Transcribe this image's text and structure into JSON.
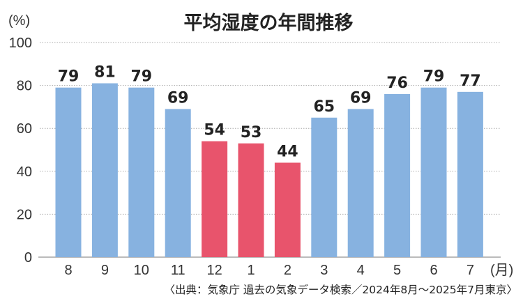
{
  "chart_data": {
    "type": "bar",
    "title": "平均湿度の年間推移",
    "ylabel": "(%)",
    "xlabel": "(月)",
    "categories": [
      "8",
      "9",
      "10",
      "11",
      "12",
      "1",
      "2",
      "3",
      "4",
      "5",
      "6",
      "7"
    ],
    "values": [
      79,
      81,
      79,
      69,
      54,
      53,
      44,
      65,
      69,
      76,
      79,
      77
    ],
    "highlight": [
      false,
      false,
      false,
      false,
      true,
      true,
      true,
      false,
      false,
      false,
      false,
      false
    ],
    "ylim": [
      0,
      100
    ],
    "yticks": [
      0,
      20,
      40,
      60,
      80,
      100
    ],
    "grid": true,
    "colors": {
      "normal": "#87b2e0",
      "highlight": "#e8546c",
      "grid": "#aaaaaa",
      "axis": "#bbbbbb"
    },
    "source": "〈出典：気象庁 過去の気象データ検索／2024年8月〜2025年7月東京〉"
  }
}
